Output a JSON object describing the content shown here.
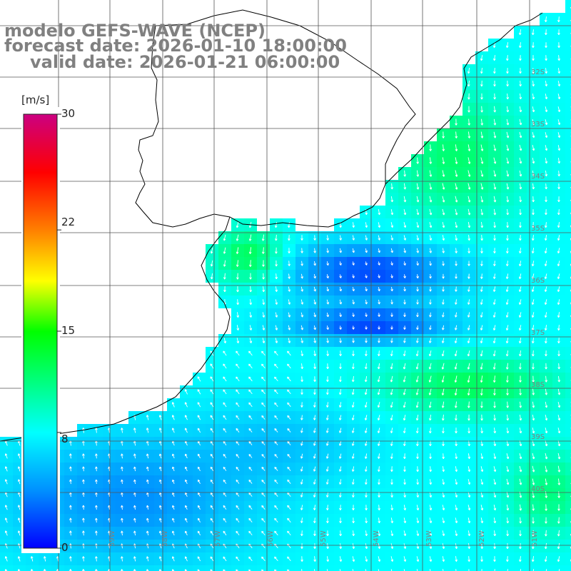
{
  "title": {
    "line1": "modelo GEFS-WAVE (NCEP)",
    "line2": "forecast date: 2026-01-10 18:00:00",
    "line3": "valid date: 2026-01-21 06:00:00"
  },
  "colorbar": {
    "unit": "[m/s]",
    "ticks": [
      "30",
      "22",
      "15",
      "8",
      "0"
    ],
    "tick_values": [
      30,
      22,
      15,
      8,
      0
    ],
    "range": [
      0,
      30
    ],
    "colors": [
      "#0000ff",
      "#0090ff",
      "#00ffff",
      "#00ff00",
      "#ffff00",
      "#ff8000",
      "#ff0000",
      "#cc0080"
    ]
  },
  "grid": {
    "lat_labels": [
      "32S",
      "33S",
      "34S",
      "35S",
      "36S",
      "37S",
      "38S",
      "39S",
      "40S"
    ],
    "lon_labels": [
      "59W",
      "58W",
      "57W",
      "56W",
      "55W",
      "54W",
      "53W",
      "52W",
      "51W"
    ]
  },
  "colors": {
    "land": "#ffffff",
    "coast": "#000000",
    "grid": "#555555",
    "label": "#808080"
  }
}
